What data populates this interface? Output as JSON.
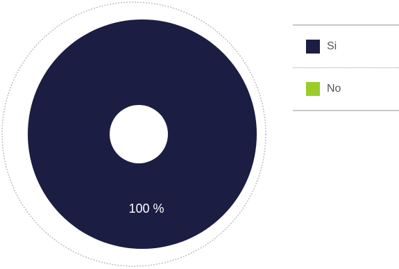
{
  "chart_data": {
    "type": "pie",
    "donut": true,
    "categories": [
      "Si",
      "No"
    ],
    "values": [
      100,
      0
    ],
    "colors": [
      "#1c1d42",
      "#9bcc2a"
    ],
    "slice_labels": [
      "100 %",
      ""
    ],
    "legend": "right",
    "title": ""
  },
  "legend": {
    "items": [
      {
        "label": "Si",
        "color": "#1c1d42"
      },
      {
        "label": "No",
        "color": "#9bcc2a"
      }
    ]
  }
}
